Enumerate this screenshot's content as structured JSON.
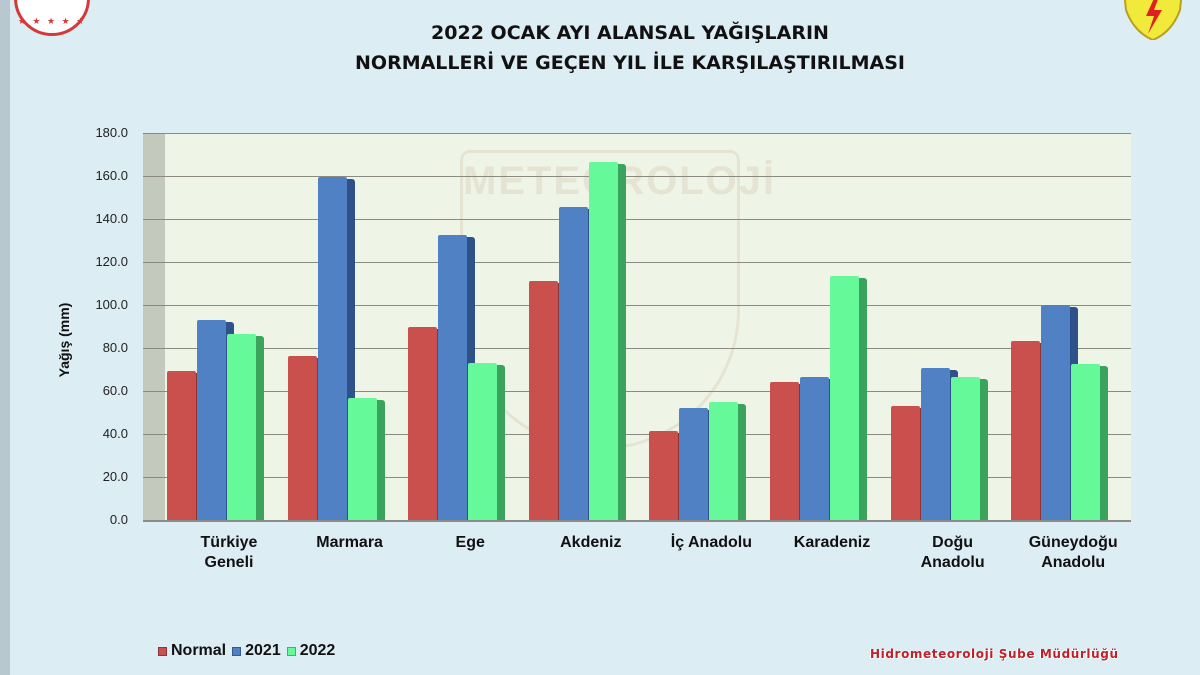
{
  "title_line1": "2022 OCAK AYI ALANSAL YAĞIŞLARIN",
  "title_line2": "NORMALLERİ VE GEÇEN YIL İLE KARŞILAŞTIRILMASI",
  "watermark": "METEOROLOJİ",
  "footer": "Hidrometeoroloji Şube Müdürlüğü",
  "colors": {
    "normal": "#c9504d",
    "y2021": "#4f81c4",
    "y2022": "#66f99a",
    "background": "#dcedf4",
    "plot_bg": "#eff5e6"
  },
  "chart_data": {
    "type": "bar",
    "title": "2022 OCAK AYI ALANSAL YAĞIŞLARIN NORMALLERİ VE GEÇEN YIL İLE KARŞILAŞTIRILMASI",
    "xlabel": "",
    "ylabel": "Yağış (mm)",
    "ylim": [
      0,
      180
    ],
    "yticks": [
      "0.0",
      "20.0",
      "40.0",
      "60.0",
      "80.0",
      "100.0",
      "120.0",
      "140.0",
      "160.0",
      "180.0"
    ],
    "grid": true,
    "legend_position": "bottom-left",
    "categories": [
      "Türkiye Geneli",
      "Marmara",
      "Ege",
      "Akdeniz",
      "İç Anadolu",
      "Karadeniz",
      "Doğu Anadolu",
      "Güneydoğu Anadolu"
    ],
    "category_lines": [
      [
        "Türkiye",
        "Geneli"
      ],
      [
        "Marmara",
        ""
      ],
      [
        "Ege",
        ""
      ],
      [
        "Akdeniz",
        ""
      ],
      [
        "İç Anadolu",
        ""
      ],
      [
        "Karadeniz",
        ""
      ],
      [
        "Doğu",
        "Anadolu"
      ],
      [
        "Güneydoğu",
        "Anadolu"
      ]
    ],
    "series": [
      {
        "name": "Normal",
        "values": [
          69.3,
          76.3,
          89.8,
          111.2,
          41.4,
          64.2,
          53.0,
          83.3
        ]
      },
      {
        "name": "2021",
        "values": [
          93.0,
          159.5,
          132.6,
          145.6,
          52.0,
          66.5,
          70.7,
          100.0
        ]
      },
      {
        "name": "2022",
        "values": [
          86.5,
          56.7,
          73.0,
          166.5,
          54.9,
          113.5,
          66.5,
          72.6
        ]
      }
    ]
  }
}
